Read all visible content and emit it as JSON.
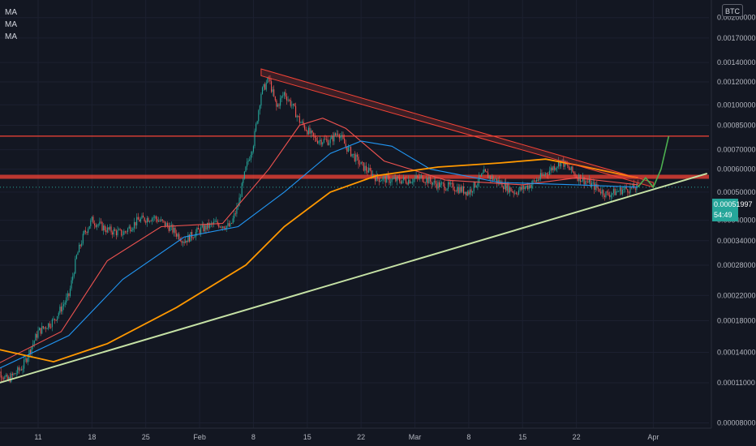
{
  "legend": {
    "ma_labels": [
      "MA",
      "MA",
      "MA"
    ]
  },
  "axis": {
    "currency": "BTC"
  },
  "price_label": {
    "value": "0.00051997",
    "countdown": "54:49"
  },
  "colors": {
    "background": "#131722",
    "up_candle": "#26a69a",
    "down_candle": "#ef5350",
    "ma_fast": "#ef5350",
    "ma_mid": "#2196f3",
    "ma_slow": "#ff9800",
    "support_line": "#c5e1a5",
    "projection": "#4caf50",
    "resistance": "#f44336"
  },
  "chart_data": {
    "type": "candlestick",
    "scale": "log",
    "y_ticks": [
      "0.00200000",
      "0.00170000",
      "0.00140000",
      "0.00120000",
      "0.00100000",
      "0.00085000",
      "0.00070000",
      "0.00060000",
      "0.00050000",
      "0.00040000",
      "0.00034000",
      "0.00028000",
      "0.00022000",
      "0.00018000",
      "0.00014000",
      "0.00011000",
      "0.00008000"
    ],
    "x_ticks": [
      "11",
      "18",
      "25",
      "Feb",
      "8",
      "15",
      "22",
      "Mar",
      "8",
      "15",
      "22",
      "Apr"
    ],
    "x_tick_dates": [
      "2021-01-11",
      "2021-01-18",
      "2021-01-25",
      "2021-02-01",
      "2021-02-08",
      "2021-02-15",
      "2021-02-22",
      "2021-03-01",
      "2021-03-08",
      "2021-03-15",
      "2021-03-22",
      "2021-04-01"
    ],
    "last_price": 0.00051997,
    "price_anchors": [
      [
        "2021-01-05",
        0.000128
      ],
      [
        "2021-01-07",
        0.000112
      ],
      [
        "2021-01-09",
        0.000125
      ],
      [
        "2021-01-11",
        0.000165
      ],
      [
        "2021-01-13",
        0.00018
      ],
      [
        "2021-01-15",
        0.00022
      ],
      [
        "2021-01-16",
        0.0003
      ],
      [
        "2021-01-17",
        0.00036
      ],
      [
        "2021-01-18",
        0.0004
      ],
      [
        "2021-01-20",
        0.00037
      ],
      [
        "2021-01-22",
        0.00036
      ],
      [
        "2021-01-24",
        0.0004
      ],
      [
        "2021-01-26",
        0.00041
      ],
      [
        "2021-01-28",
        0.00038
      ],
      [
        "2021-01-30",
        0.00034
      ],
      [
        "2021-02-01",
        0.00037
      ],
      [
        "2021-02-03",
        0.00039
      ],
      [
        "2021-02-05",
        0.00038
      ],
      [
        "2021-02-06",
        0.00045
      ],
      [
        "2021-02-07",
        0.0006
      ],
      [
        "2021-02-08",
        0.00074
      ],
      [
        "2021-02-09",
        0.0011
      ],
      [
        "2021-02-10",
        0.00123
      ],
      [
        "2021-02-11",
        0.00098
      ],
      [
        "2021-02-12",
        0.0011
      ],
      [
        "2021-02-13",
        0.001
      ],
      [
        "2021-02-14",
        0.00088
      ],
      [
        "2021-02-16",
        0.00076
      ],
      [
        "2021-02-18",
        0.00075
      ],
      [
        "2021-02-19",
        0.00081
      ],
      [
        "2021-02-20",
        0.00072
      ],
      [
        "2021-02-22",
        0.00062
      ],
      [
        "2021-02-24",
        0.00056
      ],
      [
        "2021-02-26",
        0.00055
      ],
      [
        "2021-02-28",
        0.00055
      ],
      [
        "2021-03-02",
        0.00056
      ],
      [
        "2021-03-04",
        0.00053
      ],
      [
        "2021-03-06",
        0.00052
      ],
      [
        "2021-03-08",
        0.0005
      ],
      [
        "2021-03-10",
        0.00058
      ],
      [
        "2021-03-12",
        0.00054
      ],
      [
        "2021-03-14",
        0.0005
      ],
      [
        "2021-03-16",
        0.00053
      ],
      [
        "2021-03-18",
        0.00058
      ],
      [
        "2021-03-20",
        0.00064
      ],
      [
        "2021-03-22",
        0.00057
      ],
      [
        "2021-03-24",
        0.00053
      ],
      [
        "2021-03-26",
        0.00049
      ],
      [
        "2021-03-28",
        0.00051
      ],
      [
        "2021-03-30",
        0.00052
      ]
    ],
    "moving_averages": [
      {
        "color": "#ef5350",
        "points": [
          [
            "2021-01-05",
            0.000125
          ],
          [
            "2021-01-14",
            0.000165
          ],
          [
            "2021-01-20",
            0.00029
          ],
          [
            "2021-01-27",
            0.00038
          ],
          [
            "2021-02-04",
            0.00039
          ],
          [
            "2021-02-10",
            0.0006
          ],
          [
            "2021-02-14",
            0.00085
          ],
          [
            "2021-02-17",
            0.0009
          ],
          [
            "2021-02-20",
            0.00083
          ],
          [
            "2021-02-25",
            0.00064
          ],
          [
            "2021-03-05",
            0.00055
          ],
          [
            "2021-03-15",
            0.00053
          ],
          [
            "2021-03-22",
            0.00056
          ],
          [
            "2021-03-30",
            0.00053
          ]
        ]
      },
      {
        "color": "#2196f3",
        "points": [
          [
            "2021-01-05",
            0.00012
          ],
          [
            "2021-01-15",
            0.00016
          ],
          [
            "2021-01-22",
            0.00025
          ],
          [
            "2021-01-30",
            0.00035
          ],
          [
            "2021-02-06",
            0.00038
          ],
          [
            "2021-02-12",
            0.0005
          ],
          [
            "2021-02-18",
            0.00068
          ],
          [
            "2021-02-22",
            0.00075
          ],
          [
            "2021-02-26",
            0.00072
          ],
          [
            "2021-03-03",
            0.0006
          ],
          [
            "2021-03-12",
            0.00054
          ],
          [
            "2021-03-22",
            0.00053
          ],
          [
            "2021-03-30",
            0.00052
          ]
        ]
      },
      {
        "color": "#ff9800",
        "points": [
          [
            "2021-01-05",
            0.000145
          ],
          [
            "2021-01-13",
            0.00013
          ],
          [
            "2021-01-20",
            0.00015
          ],
          [
            "2021-01-29",
            0.0002
          ],
          [
            "2021-02-07",
            0.00028
          ],
          [
            "2021-02-12",
            0.00038
          ],
          [
            "2021-02-18",
            0.0005
          ],
          [
            "2021-02-24",
            0.00057
          ],
          [
            "2021-03-04",
            0.00061
          ],
          [
            "2021-03-12",
            0.00063
          ],
          [
            "2021-03-18",
            0.00065
          ],
          [
            "2021-03-22",
            0.00062
          ],
          [
            "2021-03-30",
            0.00056
          ]
        ]
      }
    ],
    "support_line": [
      [
        "2021-01-06",
        0.00011
      ],
      [
        "2021-04-08",
        0.00058
      ]
    ],
    "horizontal_levels": [
      0.00078,
      0.000565
    ],
    "resistance_channel": [
      [
        "2021-02-09",
        0.00133,
        0.00126
      ],
      [
        "2021-04-01",
        0.00054,
        0.00052
      ]
    ],
    "projection": [
      [
        "2021-03-30",
        0.00052
      ],
      [
        "2021-03-31",
        0.00056
      ],
      [
        "2021-04-01",
        0.00052
      ],
      [
        "2021-04-02",
        0.0006
      ],
      [
        "2021-04-03",
        0.00078
      ]
    ]
  }
}
